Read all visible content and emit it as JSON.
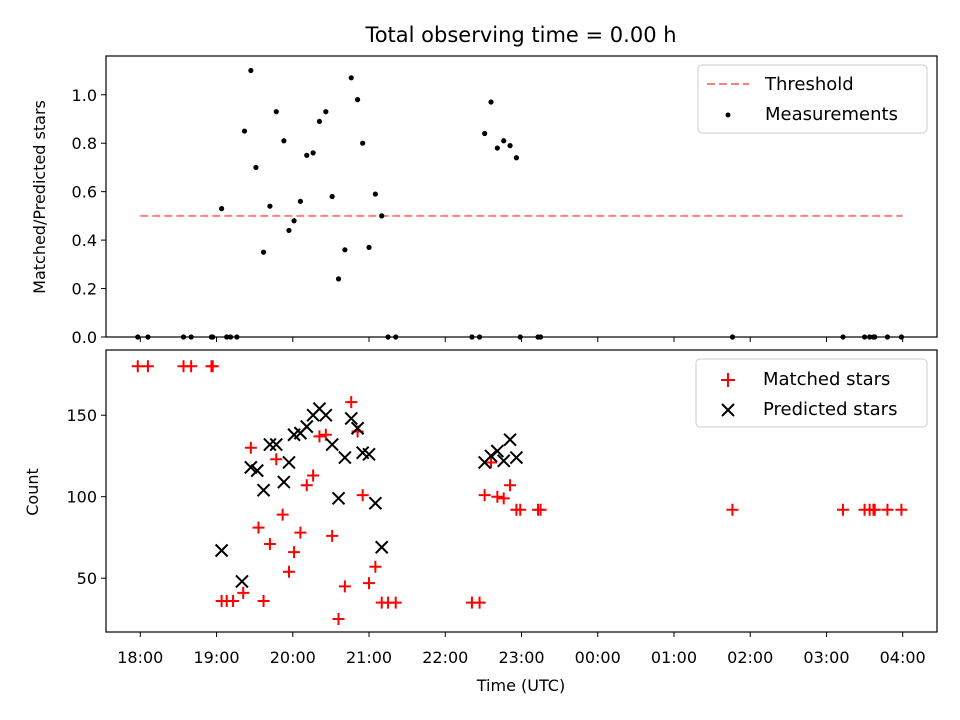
{
  "figure_title": "Total observing time = 0.00 h",
  "chart_data": [
    {
      "type": "scatter",
      "panel": "top",
      "ylabel": "Matched/Predicted stars",
      "ylim": [
        0,
        1.16
      ],
      "xlim_hours": [
        17.55,
        4.45
      ],
      "yticks": [
        0.0,
        0.2,
        0.4,
        0.6,
        0.8,
        1.0
      ],
      "ytick_labels": [
        "0.0",
        "0.2",
        "0.4",
        "0.6",
        "0.8",
        "1.0"
      ],
      "legend_position": "top-right",
      "colors": {
        "threshold": "#ff7f7f",
        "measurements": "#000000"
      },
      "threshold": {
        "name": "Threshold",
        "y": 0.5,
        "x_start": "18:00",
        "x_end": "04:00"
      },
      "series": [
        {
          "name": "Measurements",
          "points": [
            [
              "17:58",
              0.0
            ],
            [
              "18:06",
              0.0
            ],
            [
              "18:34",
              0.0
            ],
            [
              "18:40",
              0.0
            ],
            [
              "18:56",
              0.0
            ],
            [
              "18:57",
              0.0
            ],
            [
              "19:04",
              0.53
            ],
            [
              "19:08",
              0.0
            ],
            [
              "19:11",
              0.0
            ],
            [
              "19:16",
              0.0
            ],
            [
              "19:22",
              0.85
            ],
            [
              "19:27",
              1.1
            ],
            [
              "19:31",
              0.7
            ],
            [
              "19:37",
              0.35
            ],
            [
              "19:42",
              0.54
            ],
            [
              "19:47",
              0.93
            ],
            [
              "19:53",
              0.81
            ],
            [
              "19:57",
              0.44
            ],
            [
              "20:01",
              0.48
            ],
            [
              "20:06",
              0.56
            ],
            [
              "20:11",
              0.75
            ],
            [
              "20:16",
              0.76
            ],
            [
              "20:21",
              0.89
            ],
            [
              "20:26",
              0.93
            ],
            [
              "20:31",
              0.58
            ],
            [
              "20:36",
              0.24
            ],
            [
              "20:41",
              0.36
            ],
            [
              "20:46",
              1.07
            ],
            [
              "20:51",
              0.98
            ],
            [
              "20:55",
              0.8
            ],
            [
              "21:00",
              0.37
            ],
            [
              "21:05",
              0.59
            ],
            [
              "21:10",
              0.5
            ],
            [
              "21:15",
              0.0
            ],
            [
              "21:21",
              0.0
            ],
            [
              "22:21",
              0.0
            ],
            [
              "22:27",
              0.0
            ],
            [
              "22:31",
              0.84
            ],
            [
              "22:36",
              0.97
            ],
            [
              "22:41",
              0.78
            ],
            [
              "22:46",
              0.81
            ],
            [
              "22:51",
              0.79
            ],
            [
              "22:56",
              0.74
            ],
            [
              "22:59",
              0.0
            ],
            [
              "23:13",
              0.0
            ],
            [
              "23:15",
              0.0
            ],
            [
              "01:46",
              0.0
            ],
            [
              "03:13",
              0.0
            ],
            [
              "03:30",
              0.0
            ],
            [
              "03:34",
              0.0
            ],
            [
              "03:37",
              0.0
            ],
            [
              "03:38",
              0.0
            ],
            [
              "03:48",
              0.0
            ],
            [
              "03:59",
              0.0
            ]
          ]
        }
      ]
    },
    {
      "type": "scatter",
      "panel": "bottom",
      "xlabel": "Time (UTC)",
      "ylabel": "Count",
      "ylim": [
        17,
        190
      ],
      "xlim_hours": [
        17.55,
        4.45
      ],
      "yticks": [
        50,
        100,
        150
      ],
      "ytick_labels": [
        "50",
        "100",
        "150"
      ],
      "xtick_labels": [
        "18:00",
        "19:00",
        "20:00",
        "21:00",
        "22:00",
        "23:00",
        "00:00",
        "01:00",
        "02:00",
        "03:00",
        "04:00"
      ],
      "legend_position": "top-right",
      "colors": {
        "matched": "#ff0000",
        "predicted": "#000000"
      },
      "series": [
        {
          "name": "Matched stars",
          "marker": "plus",
          "points": [
            [
              "17:58",
              180
            ],
            [
              "18:06",
              180
            ],
            [
              "18:34",
              180
            ],
            [
              "18:40",
              180
            ],
            [
              "18:56",
              180
            ],
            [
              "18:57",
              180
            ],
            [
              "19:04",
              36
            ],
            [
              "19:08",
              36
            ],
            [
              "19:13",
              36
            ],
            [
              "19:21",
              41
            ],
            [
              "19:27",
              130
            ],
            [
              "19:33",
              81
            ],
            [
              "19:37",
              36
            ],
            [
              "19:42",
              71
            ],
            [
              "19:47",
              123
            ],
            [
              "19:52",
              89
            ],
            [
              "19:57",
              54
            ],
            [
              "20:01",
              66
            ],
            [
              "20:06",
              78
            ],
            [
              "20:11",
              107
            ],
            [
              "20:16",
              113
            ],
            [
              "20:21",
              137
            ],
            [
              "20:26",
              138
            ],
            [
              "20:31",
              76
            ],
            [
              "20:36",
              25
            ],
            [
              "20:41",
              45
            ],
            [
              "20:46",
              158
            ],
            [
              "20:51",
              140
            ],
            [
              "20:55",
              101
            ],
            [
              "21:00",
              47
            ],
            [
              "21:05",
              57
            ],
            [
              "21:10",
              35
            ],
            [
              "21:15",
              35
            ],
            [
              "21:21",
              35
            ],
            [
              "22:21",
              35
            ],
            [
              "22:27",
              35
            ],
            [
              "22:31",
              101
            ],
            [
              "22:36",
              121
            ],
            [
              "22:41",
              100
            ],
            [
              "22:46",
              99
            ],
            [
              "22:51",
              107
            ],
            [
              "22:56",
              92
            ],
            [
              "22:59",
              92
            ],
            [
              "23:13",
              92
            ],
            [
              "23:15",
              92
            ],
            [
              "01:46",
              92
            ],
            [
              "03:13",
              92
            ],
            [
              "03:30",
              92
            ],
            [
              "03:34",
              92
            ],
            [
              "03:37",
              92
            ],
            [
              "03:38",
              92
            ],
            [
              "03:48",
              92
            ],
            [
              "03:59",
              92
            ]
          ]
        },
        {
          "name": "Predicted stars",
          "marker": "x",
          "points": [
            [
              "19:04",
              67
            ],
            [
              "19:20",
              48
            ],
            [
              "19:27",
              118
            ],
            [
              "19:32",
              116
            ],
            [
              "19:37",
              104
            ],
            [
              "19:42",
              132
            ],
            [
              "19:47",
              132
            ],
            [
              "19:53",
              109
            ],
            [
              "19:57",
              121
            ],
            [
              "20:01",
              138
            ],
            [
              "20:06",
              139
            ],
            [
              "20:11",
              143
            ],
            [
              "20:16",
              150
            ],
            [
              "20:21",
              154
            ],
            [
              "20:26",
              150
            ],
            [
              "20:31",
              132
            ],
            [
              "20:36",
              99
            ],
            [
              "20:41",
              124
            ],
            [
              "20:46",
              148
            ],
            [
              "20:51",
              142
            ],
            [
              "20:55",
              127
            ],
            [
              "21:00",
              126
            ],
            [
              "21:05",
              96
            ],
            [
              "21:10",
              69
            ],
            [
              "22:31",
              121
            ],
            [
              "22:36",
              125
            ],
            [
              "22:41",
              128
            ],
            [
              "22:46",
              122
            ],
            [
              "22:51",
              135
            ],
            [
              "22:56",
              124
            ]
          ]
        }
      ]
    }
  ]
}
